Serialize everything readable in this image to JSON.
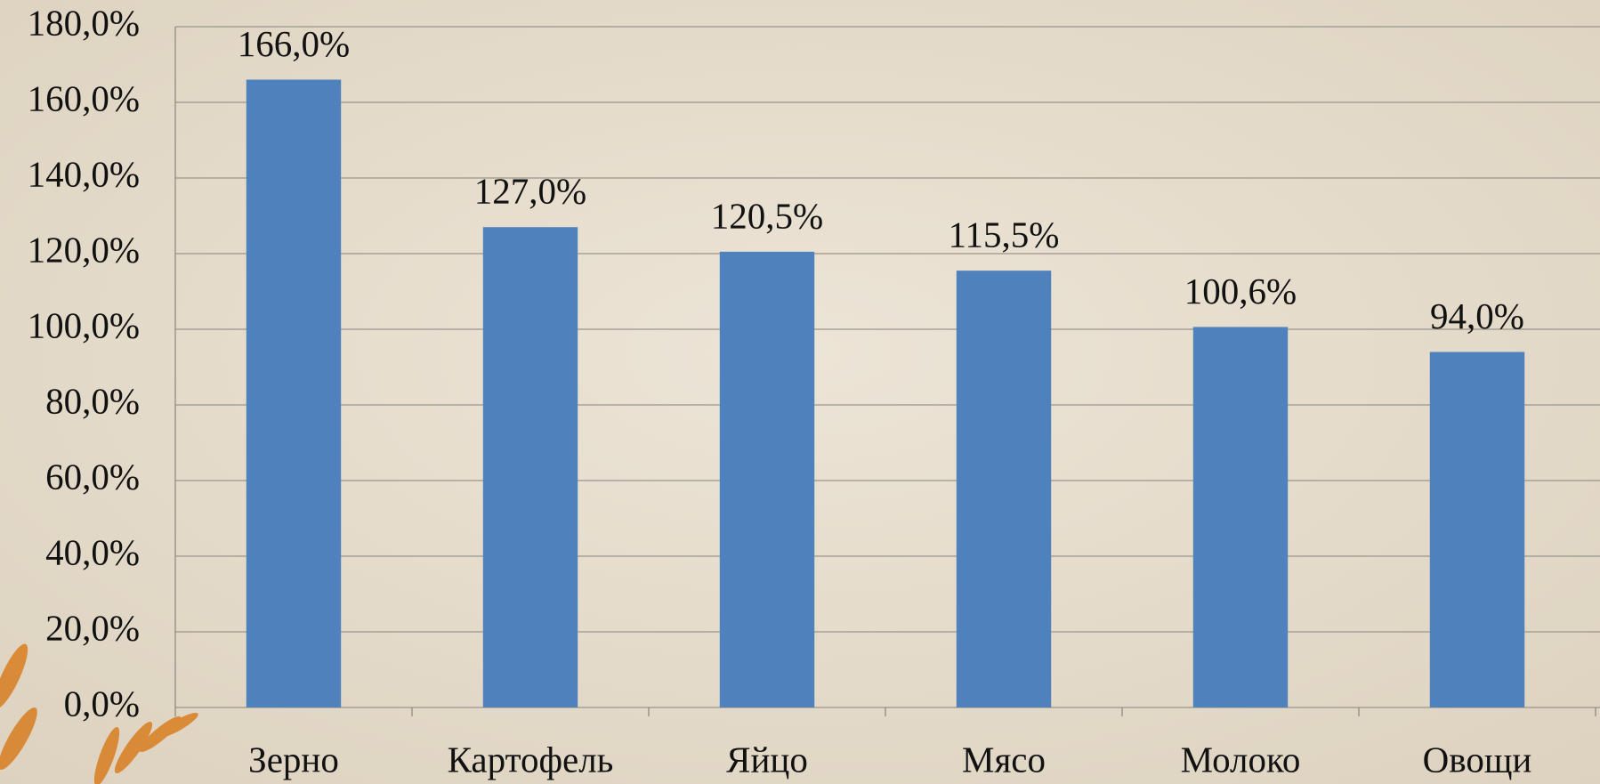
{
  "chart_data": {
    "type": "bar",
    "categories": [
      "Зерно",
      "Картофель",
      "Яйцо",
      "Мясо",
      "Молоко",
      "Овощи"
    ],
    "values": [
      166.0,
      127.0,
      120.5,
      115.5,
      100.6,
      94.0
    ],
    "value_labels": [
      "166,0%",
      "127,0%",
      "120,5%",
      "115,5%",
      "100,6%",
      "94,0%"
    ],
    "color": "#4f81bd",
    "ylim": [
      0,
      180
    ],
    "yticks": [
      {
        "value": 0,
        "label": "0,0%"
      },
      {
        "value": 20,
        "label": "20,0%"
      },
      {
        "value": 40,
        "label": "40,0%"
      },
      {
        "value": 60,
        "label": "60,0%"
      },
      {
        "value": 80,
        "label": "80,0%"
      },
      {
        "value": 100,
        "label": "100,0%"
      },
      {
        "value": 120,
        "label": "120,0%"
      },
      {
        "value": 140,
        "label": "140,0%"
      },
      {
        "value": 160,
        "label": "160,0%"
      },
      {
        "value": 180,
        "label": "180,0%"
      }
    ],
    "grid": true
  }
}
